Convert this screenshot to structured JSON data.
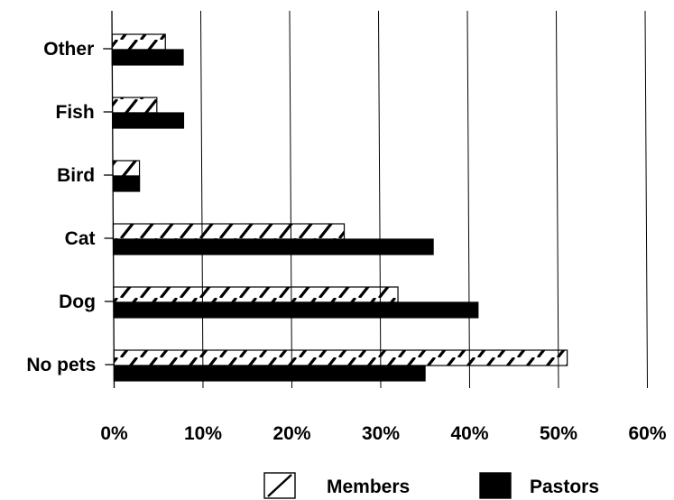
{
  "chart_data": {
    "type": "bar",
    "orientation": "horizontal",
    "categories": [
      "Other",
      "Fish",
      "Bird",
      "Cat",
      "Dog",
      "No pets"
    ],
    "series": [
      {
        "name": "Members",
        "values": [
          6,
          5,
          3,
          26,
          32,
          51
        ],
        "pattern": "diagonal-hatch"
      },
      {
        "name": "Pastors",
        "values": [
          8,
          8,
          3,
          36,
          41,
          35
        ],
        "pattern": "solid"
      }
    ],
    "x_ticks": [
      "0%",
      "10%",
      "20%",
      "30%",
      "40%",
      "50%",
      "60%"
    ],
    "xlim": [
      0,
      60
    ],
    "grid": "vertical",
    "legend_position": "bottom-right",
    "colors": {
      "ink": "#000000",
      "background": "#ffffff"
    }
  }
}
